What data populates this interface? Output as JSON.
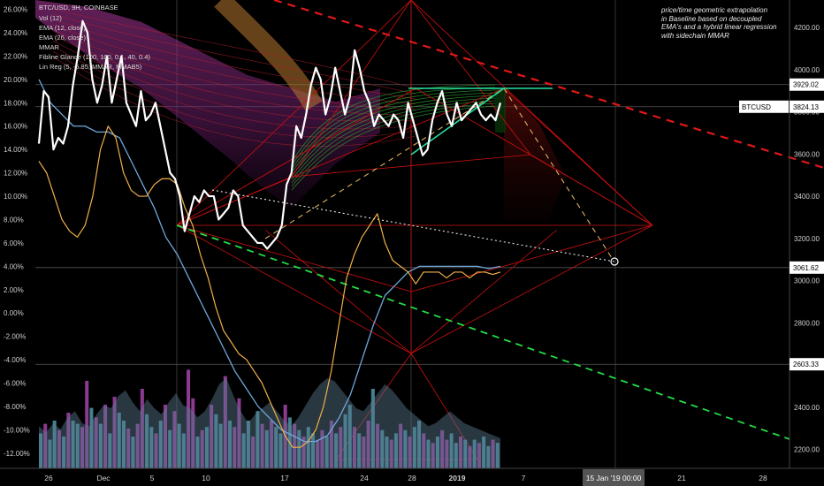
{
  "header": {
    "symbol_line": "BTC/USD, 9H, COINBASE",
    "indicators": [
      "Vol (12)",
      "EMA (12, close)",
      "EMA (26, close)",
      "MMAR",
      "Fibline Glance (100, 100, 0.1, 40, 0.4)",
      "Lin Reg (5, -5.85, MMAR, MMAB5)"
    ]
  },
  "annotation": [
    "price/time geometric extrapolation",
    "in Baseline based on decoupled",
    "EMA's and a hybrid linear regression",
    "with sidechain MMAR"
  ],
  "colors": {
    "background": "#000000",
    "price_line": "#ffffff",
    "ema12": "#f0b04a",
    "ema26": "#6fa8dc",
    "red_geometry": "#d01010",
    "dashed_resistance": "#e01818",
    "dashed_support": "#22dd44",
    "channel": "#26e0a0",
    "projection": "#e0b060",
    "volume_up": "#4a8fa0",
    "volume_down": "#9b3fa0"
  },
  "chart_data": {
    "type": "line",
    "x_tick_labels": [
      "26",
      "Dec",
      "5",
      "10",
      "17",
      "24",
      "28",
      "2019",
      "7",
      "15 Jan '19   00:00",
      "21",
      "28"
    ],
    "left_axis_labels": [
      "26.00%",
      "24.00%",
      "22.00%",
      "20.00%",
      "18.00%",
      "16.00%",
      "14.00%",
      "12.00%",
      "10.00%",
      "8.00%",
      "6.00%",
      "4.00%",
      "2.00%",
      "0.00%",
      "-2.00%",
      "-4.00%",
      "-6.00%",
      "-8.00%",
      "-10.00%",
      "-12.00%"
    ],
    "left_axis_range": [
      -13.3,
      26.8
    ],
    "right_axis_labels": [
      "4200.00",
      "4000.00",
      "3800.00",
      "3600.00",
      "3400.00",
      "3200.00",
      "3000.00",
      "2800.00",
      "2600.00",
      "2400.00",
      "2200.00"
    ],
    "right_axis_range": [
      2110,
      4330
    ],
    "price_labels": [
      {
        "text": "3929.02",
        "value": 3929.02
      },
      {
        "text": "BTCUSD",
        "value": 3824.13
      },
      {
        "text": "3824.13",
        "value": 3824.13
      },
      {
        "text": "3061.62",
        "value": 3061.62
      },
      {
        "text": "2603.33",
        "value": 2603.33
      }
    ],
    "series": [
      {
        "values": [
          14.5,
          19,
          18.5,
          14,
          15,
          14.5,
          16,
          19.5,
          22,
          25,
          24,
          20,
          18,
          19.5,
          22,
          18,
          20,
          22,
          18,
          17,
          16,
          19,
          16.5,
          17,
          18,
          16,
          14,
          12,
          11.5,
          10,
          7,
          8.5,
          10,
          9.5,
          10.5,
          10,
          10,
          8,
          8.5,
          9,
          10.5,
          10,
          7.5,
          7,
          6.5,
          6,
          6,
          5.5,
          6,
          6.5,
          7.5,
          11,
          12,
          16,
          15,
          17,
          19.5,
          21,
          20,
          17,
          18.5,
          21,
          19,
          17,
          18.5,
          22.5,
          21,
          19,
          18,
          16,
          17,
          16.5,
          16,
          17,
          16.5,
          15,
          18,
          16.5,
          15,
          13.5,
          14,
          16.5,
          18,
          19,
          17,
          16,
          18,
          16.5,
          17,
          17.5,
          18,
          17,
          16.5,
          17,
          16.5,
          18
        ]
      },
      {
        "values": [
          13,
          12,
          10,
          8,
          7,
          6.5,
          7.5,
          10,
          14,
          16,
          15,
          12,
          10.5,
          10,
          10,
          11,
          11.5,
          11.5,
          11,
          9,
          7.5,
          5,
          3,
          0.5,
          -1.5,
          -2.5,
          -3.5,
          -4,
          -5,
          -6,
          -7.5,
          -9,
          -10.5,
          -11.5,
          -11.5,
          -11,
          -10,
          -8,
          -5,
          -1,
          3,
          5,
          6.5,
          7.5,
          8.5,
          6,
          4.5,
          4,
          3.5,
          2.5,
          3.5,
          3.5,
          3.5,
          3,
          3.5,
          3.5,
          3,
          3.5,
          3.5,
          3.3,
          3.5
        ]
      },
      {
        "values": [
          20,
          18,
          17,
          16,
          16,
          15.5,
          15.5,
          15,
          13,
          11,
          9,
          6.5,
          5,
          3,
          1,
          -1,
          -3,
          -5,
          -6.5,
          -8,
          -9,
          -10,
          -10.5,
          -11,
          -11,
          -10.5,
          -9,
          -7,
          -4,
          -1,
          1.5,
          2.5,
          3.5,
          4,
          4,
          4,
          4,
          4,
          4,
          3.8,
          4
        ]
      },
      {
        "name": "Vol (12)",
        "values": [
          28,
          24,
          30,
          26,
          34,
          38,
          30,
          28,
          36,
          42,
          40,
          48,
          52,
          44,
          38,
          46,
          40,
          36,
          44,
          50,
          42,
          40,
          34,
          38,
          46,
          56,
          60,
          48,
          38,
          30,
          36,
          40,
          44,
          38,
          32,
          28,
          34,
          42,
          50,
          56,
          60,
          58,
          52,
          46,
          40,
          38,
          44,
          50,
          56,
          52,
          46,
          40,
          36,
          32,
          28,
          30,
          34,
          38,
          34,
          30,
          28,
          26,
          24,
          22,
          20
        ]
      }
    ],
    "volume_bars": [
      22,
      28,
      18,
      30,
      24,
      20,
      35,
      30,
      28,
      26,
      55,
      38,
      32,
      28,
      40,
      22,
      45,
      35,
      30,
      25,
      20,
      28,
      50,
      34,
      26,
      22,
      30,
      40,
      24,
      36,
      28,
      22,
      62,
      44,
      20,
      24,
      26,
      40,
      34,
      28,
      58,
      30,
      26,
      44,
      22,
      30,
      20,
      36,
      28,
      24,
      30,
      26,
      22,
      40,
      32,
      28,
      24,
      20,
      26,
      22,
      18,
      24,
      20,
      30,
      22,
      26,
      34,
      40,
      26,
      22,
      20,
      30,
      50,
      28,
      24,
      20,
      18,
      22,
      28,
      24,
      20,
      26,
      30,
      22,
      18,
      16,
      20,
      24,
      18,
      22,
      16,
      20,
      18,
      14,
      18,
      16,
      20,
      14,
      18,
      16
    ],
    "volume_bar_up": [
      1,
      0,
      1,
      1,
      0,
      1,
      0,
      1,
      1,
      0,
      0,
      1,
      0,
      1,
      0,
      1,
      0,
      1,
      1,
      0,
      1,
      0,
      0,
      1,
      1,
      0,
      1,
      0,
      1,
      0,
      1,
      1,
      0,
      0,
      1,
      0,
      1,
      0,
      1,
      1,
      0,
      1,
      0,
      0,
      1,
      1,
      0,
      1,
      0,
      1,
      0,
      1,
      1,
      0,
      1,
      0,
      1,
      0,
      1,
      1,
      0,
      0,
      1,
      0,
      1,
      0,
      1,
      1,
      0,
      1,
      0,
      0,
      1,
      0,
      1,
      1,
      0,
      1,
      0,
      1,
      0,
      1,
      1,
      0,
      1,
      0,
      1,
      0,
      0,
      1,
      1,
      0,
      1,
      0,
      1,
      0,
      1,
      1,
      0,
      1
    ],
    "ylim": [
      2110,
      4330
    ]
  }
}
